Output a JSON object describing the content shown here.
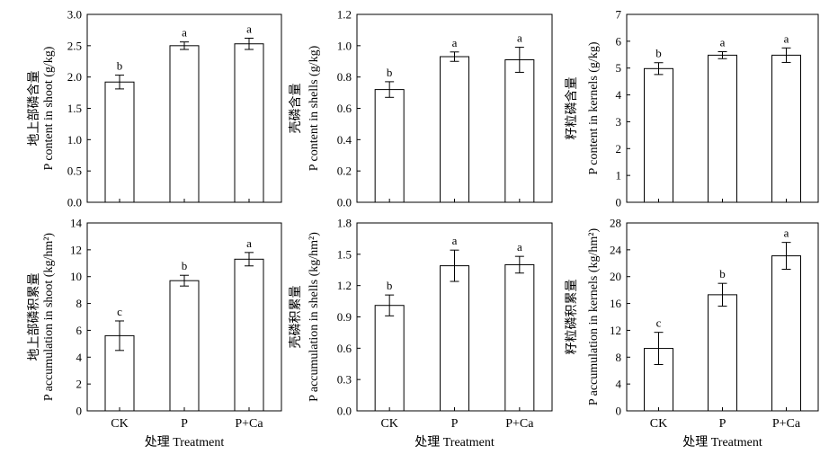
{
  "chart_data": [
    {
      "type": "bar",
      "categories": [
        "CK",
        "P",
        "P+Ca"
      ],
      "values": [
        1.92,
        2.5,
        2.53
      ],
      "errors": [
        0.11,
        0.06,
        0.09
      ],
      "letters": [
        "b",
        "a",
        "a"
      ],
      "ylabel_lines": [
        "地上部磷含量",
        "P content in shoot (g/kg)"
      ],
      "xlabel": "",
      "ylim": [
        0,
        3.0
      ],
      "yticks": [
        "0.0",
        "0.5",
        "1.0",
        "1.5",
        "2.0",
        "2.5",
        "3.0"
      ],
      "show_categories": false
    },
    {
      "type": "bar",
      "categories": [
        "CK",
        "P",
        "P+Ca"
      ],
      "values": [
        0.72,
        0.93,
        0.91
      ],
      "errors": [
        0.05,
        0.03,
        0.08
      ],
      "letters": [
        "b",
        "a",
        "a"
      ],
      "ylabel_lines": [
        "壳磷含量",
        "P content in shells (g/kg)"
      ],
      "xlabel": "",
      "ylim": [
        0,
        1.2
      ],
      "yticks": [
        "0.0",
        "0.2",
        "0.4",
        "0.6",
        "0.8",
        "1.0",
        "1.2"
      ],
      "show_categories": false
    },
    {
      "type": "bar",
      "categories": [
        "CK",
        "P",
        "P+Ca"
      ],
      "values": [
        4.98,
        5.48,
        5.48
      ],
      "errors": [
        0.22,
        0.13,
        0.27
      ],
      "letters": [
        "b",
        "a",
        "a"
      ],
      "ylabel_lines": [
        "籽粒磷含量",
        "P content in kernels (g/kg)"
      ],
      "xlabel": "",
      "ylim": [
        0,
        7
      ],
      "yticks": [
        "0",
        "1",
        "2",
        "3",
        "4",
        "5",
        "6",
        "7"
      ],
      "show_categories": false
    },
    {
      "type": "bar",
      "categories": [
        "CK",
        "P",
        "P+Ca"
      ],
      "values": [
        5.6,
        9.7,
        11.3
      ],
      "errors": [
        1.1,
        0.4,
        0.5
      ],
      "letters": [
        "c",
        "b",
        "a"
      ],
      "ylabel_lines": [
        "地上部磷积累量",
        "P accumulation in shoot (kg/hm²)"
      ],
      "xlabel": "处理 Treatment",
      "ylim": [
        0,
        14
      ],
      "yticks": [
        "0",
        "2",
        "4",
        "6",
        "8",
        "10",
        "12",
        "14"
      ],
      "show_categories": true
    },
    {
      "type": "bar",
      "categories": [
        "CK",
        "P",
        "P+Ca"
      ],
      "values": [
        1.01,
        1.39,
        1.4
      ],
      "errors": [
        0.1,
        0.15,
        0.08
      ],
      "letters": [
        "b",
        "a",
        "a"
      ],
      "ylabel_lines": [
        "壳磷积累量",
        "P accumulation in shells (kg/hm²)"
      ],
      "xlabel": "处理 Treatment",
      "ylim": [
        0,
        1.8
      ],
      "yticks": [
        "0.0",
        "0.3",
        "0.6",
        "0.9",
        "1.2",
        "1.5",
        "1.8"
      ],
      "show_categories": true
    },
    {
      "type": "bar",
      "categories": [
        "CK",
        "P",
        "P+Ca"
      ],
      "values": [
        9.3,
        17.3,
        23.1
      ],
      "errors": [
        2.4,
        1.7,
        2.0
      ],
      "letters": [
        "c",
        "b",
        "a"
      ],
      "ylabel_lines": [
        "籽粒磷积累量",
        "P accumulation in kernels (kg/hm²)"
      ],
      "xlabel": "处理 Treatment",
      "ylim": [
        0,
        28
      ],
      "yticks": [
        "0",
        "4",
        "8",
        "12",
        "16",
        "20",
        "24",
        "28"
      ],
      "show_categories": true
    }
  ]
}
